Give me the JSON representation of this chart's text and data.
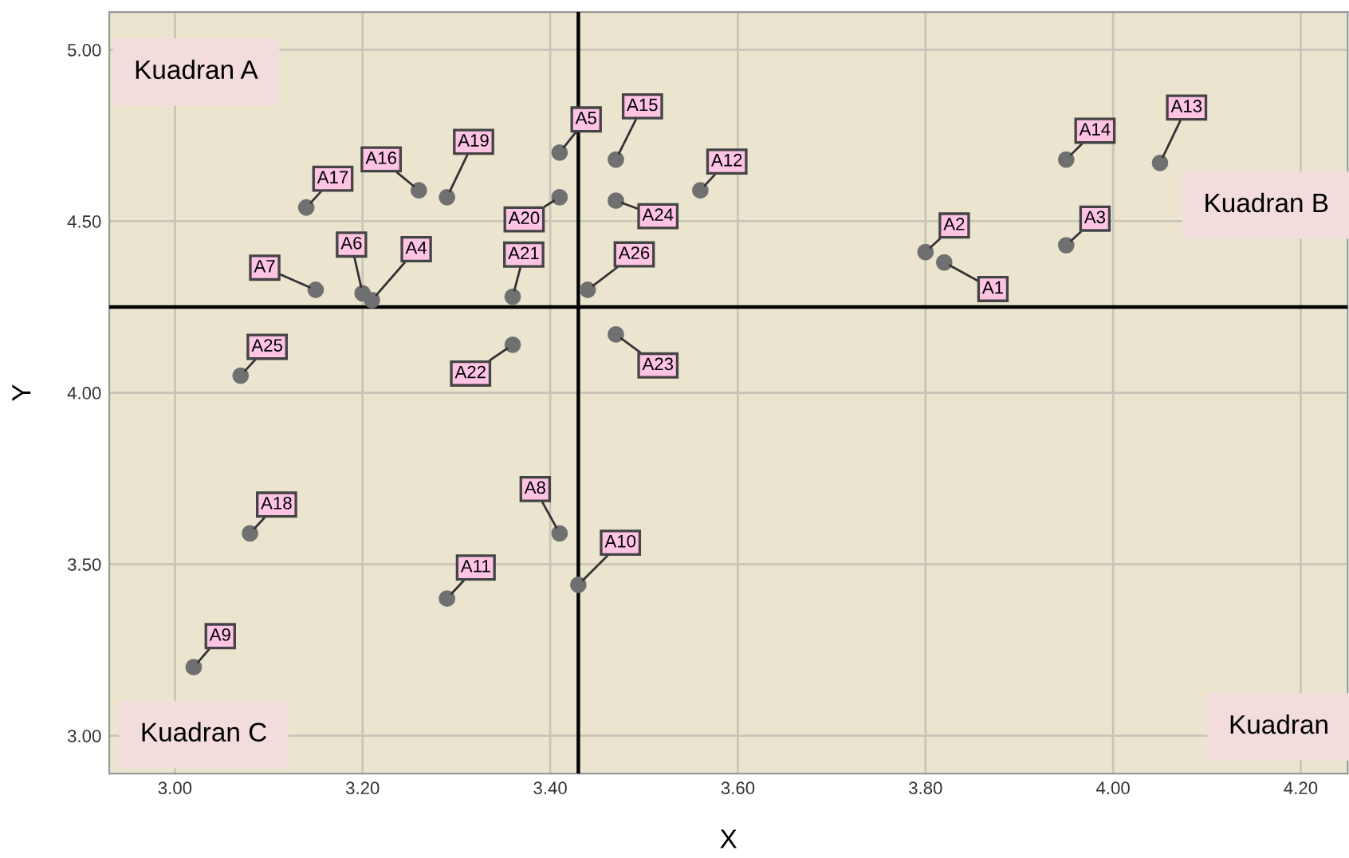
{
  "chart_data": {
    "type": "scatter",
    "xlabel": "X",
    "ylabel": "Y",
    "x": [
      3.82,
      3.8,
      3.95,
      3.21,
      3.41,
      3.2,
      3.15,
      3.41,
      3.02,
      3.43,
      3.29,
      3.56,
      4.05,
      3.95,
      3.47,
      3.26,
      3.14,
      3.08,
      3.29,
      3.41,
      3.36,
      3.36,
      3.47,
      3.47,
      3.07,
      3.44
    ],
    "series": [
      {
        "color": "#707070",
        "values": [
          4.38,
          4.41,
          4.43,
          4.27,
          4.7,
          4.29,
          4.3,
          3.59,
          3.2,
          3.44,
          3.4,
          4.59,
          4.67,
          4.68,
          4.68,
          4.59,
          4.54,
          3.59,
          4.57,
          4.57,
          4.28,
          4.14,
          4.17,
          4.56,
          4.05,
          4.3
        ]
      }
    ],
    "marker": "circle",
    "grid": true,
    "xlim": [
      2.93,
      4.25
    ],
    "ylim": [
      2.89,
      5.11
    ],
    "xticks": [
      {
        "value": 3.0,
        "label": "3.00"
      },
      {
        "value": 3.2,
        "label": "3.20"
      },
      {
        "value": 3.4,
        "label": "3.40"
      },
      {
        "value": 3.6,
        "label": "3.60"
      },
      {
        "value": 3.8,
        "label": "3.80"
      },
      {
        "value": 4.0,
        "label": "4.00"
      },
      {
        "value": 4.2,
        "label": "4.20"
      }
    ],
    "yticks": [
      {
        "value": 3.0,
        "label": "3.00"
      },
      {
        "value": 3.5,
        "label": "3.50"
      },
      {
        "value": 4.0,
        "label": "4.00"
      },
      {
        "value": 4.5,
        "label": "4.50"
      },
      {
        "value": 5.0,
        "label": "5.00"
      }
    ],
    "ref_lines": [
      {
        "axis": "x",
        "value": 3.43,
        "color": "#000000"
      },
      {
        "axis": "y",
        "value": 4.25,
        "color": "#000000"
      }
    ],
    "annotations": [
      {
        "text": "A1",
        "x": 3.82,
        "y": 4.38
      },
      {
        "text": "A2",
        "x": 3.8,
        "y": 4.41
      },
      {
        "text": "A3",
        "x": 3.95,
        "y": 4.43
      },
      {
        "text": "A4",
        "x": 3.21,
        "y": 4.27
      },
      {
        "text": "A5",
        "x": 3.41,
        "y": 4.7
      },
      {
        "text": "A6",
        "x": 3.2,
        "y": 4.29
      },
      {
        "text": "A7",
        "x": 3.15,
        "y": 4.3
      },
      {
        "text": "A8",
        "x": 3.41,
        "y": 3.59
      },
      {
        "text": "A9",
        "x": 3.02,
        "y": 3.2
      },
      {
        "text": "A10",
        "x": 3.43,
        "y": 3.44
      },
      {
        "text": "A11",
        "x": 3.29,
        "y": 3.4
      },
      {
        "text": "A12",
        "x": 3.56,
        "y": 4.59
      },
      {
        "text": "A13",
        "x": 4.05,
        "y": 4.67
      },
      {
        "text": "A14",
        "x": 3.95,
        "y": 4.68
      },
      {
        "text": "A15",
        "x": 3.47,
        "y": 4.68
      },
      {
        "text": "A16",
        "x": 3.26,
        "y": 4.59
      },
      {
        "text": "A17",
        "x": 3.14,
        "y": 4.54
      },
      {
        "text": "A18",
        "x": 3.08,
        "y": 3.59
      },
      {
        "text": "A19",
        "x": 3.29,
        "y": 4.57
      },
      {
        "text": "A20",
        "x": 3.41,
        "y": 4.57
      },
      {
        "text": "A21",
        "x": 3.36,
        "y": 4.28
      },
      {
        "text": "A22",
        "x": 3.36,
        "y": 4.14
      },
      {
        "text": "A23",
        "x": 3.47,
        "y": 4.17
      },
      {
        "text": "A24",
        "x": 3.47,
        "y": 4.56
      },
      {
        "text": "A25",
        "x": 3.07,
        "y": 4.05
      },
      {
        "text": "A26",
        "x": 3.44,
        "y": 4.3
      },
      "Kuadran A",
      "Kuadran B",
      "Kuadran C",
      "Kuadran"
    ]
  }
}
